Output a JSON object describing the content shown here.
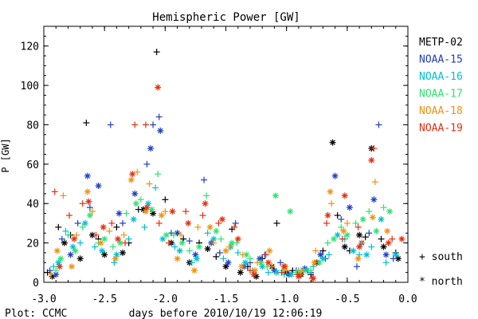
{
  "chart_data": {
    "type": "scatter",
    "title": "Hemispheric Power [GW]",
    "xlabel": "days before 2010/10/19 12:06:19",
    "ylabel": "P [GW]",
    "footer": "Plot: CCMC",
    "xlim": [
      -3.0,
      0.0
    ],
    "ylim": [
      0,
      130
    ],
    "xticks": [
      "-3.0",
      "-2.5",
      "-2.0",
      "-1.5",
      "-1.0",
      "-0.5",
      "0.0"
    ],
    "yticks": [
      "0",
      "20",
      "40",
      "60",
      "80",
      "100",
      "120"
    ],
    "legend_position": "right",
    "symbol_legend": [
      {
        "symbol": "+",
        "label": "south"
      },
      {
        "symbol": "*",
        "label": "north"
      }
    ],
    "series": [
      {
        "name": "METP-02",
        "color": "#000000",
        "south": [
          [
            -2.97,
            5
          ],
          [
            -2.88,
            28
          ],
          [
            -2.78,
            24
          ],
          [
            -2.65,
            81
          ],
          [
            -2.55,
            22
          ],
          [
            -2.4,
            28
          ],
          [
            -2.3,
            20
          ],
          [
            -2.22,
            37
          ],
          [
            -2.07,
            117
          ],
          [
            -2.0,
            42
          ],
          [
            -1.85,
            22
          ],
          [
            -1.72,
            20
          ],
          [
            -1.58,
            13
          ],
          [
            -1.45,
            27
          ],
          [
            -1.32,
            8
          ],
          [
            -1.2,
            12
          ],
          [
            -1.08,
            30
          ],
          [
            -0.95,
            6
          ],
          [
            -0.8,
            4
          ],
          [
            -0.7,
            16
          ],
          [
            -0.58,
            34
          ],
          [
            -0.48,
            16
          ],
          [
            -0.35,
            23
          ],
          [
            -0.22,
            22
          ],
          [
            -0.1,
            15
          ]
        ],
        "north": [
          [
            -2.93,
            3
          ],
          [
            -2.83,
            20
          ],
          [
            -2.7,
            12
          ],
          [
            -2.6,
            24
          ],
          [
            -2.5,
            14
          ],
          [
            -2.35,
            15
          ],
          [
            -2.18,
            37
          ],
          [
            -2.1,
            35
          ],
          [
            -1.95,
            20
          ],
          [
            -1.8,
            10
          ],
          [
            -1.65,
            17
          ],
          [
            -1.5,
            8
          ],
          [
            -1.38,
            5
          ],
          [
            -1.25,
            3
          ],
          [
            -1.12,
            8
          ],
          [
            -1.0,
            5
          ],
          [
            -0.88,
            4
          ],
          [
            -0.75,
            10
          ],
          [
            -0.62,
            71
          ],
          [
            -0.52,
            18
          ],
          [
            -0.4,
            24
          ],
          [
            -0.3,
            68
          ],
          [
            -0.2,
            18
          ],
          [
            -0.08,
            12
          ]
        ]
      },
      {
        "name": "NOAA-15",
        "color": "#1f3fbf",
        "south": [
          [
            -2.95,
            6
          ],
          [
            -2.85,
            22
          ],
          [
            -2.72,
            30
          ],
          [
            -2.62,
            38
          ],
          [
            -2.45,
            80
          ],
          [
            -2.35,
            30
          ],
          [
            -2.15,
            60
          ],
          [
            -2.1,
            80
          ],
          [
            -2.05,
            84
          ],
          [
            -1.95,
            25
          ],
          [
            -1.8,
            21
          ],
          [
            -1.68,
            52
          ],
          [
            -1.55,
            15
          ],
          [
            -1.42,
            30
          ],
          [
            -1.3,
            10
          ],
          [
            -1.18,
            14
          ],
          [
            -1.05,
            10
          ],
          [
            -0.92,
            6
          ],
          [
            -0.8,
            5
          ],
          [
            -0.68,
            12
          ],
          [
            -0.55,
            32
          ],
          [
            -0.42,
            8
          ],
          [
            -0.32,
            25
          ],
          [
            -0.24,
            80
          ],
          [
            -0.12,
            12
          ]
        ],
        "north": [
          [
            -2.9,
            4
          ],
          [
            -2.78,
            14
          ],
          [
            -2.64,
            54
          ],
          [
            -2.55,
            49
          ],
          [
            -2.38,
            35
          ],
          [
            -2.25,
            45
          ],
          [
            -2.12,
            68
          ],
          [
            -2.04,
            77
          ],
          [
            -1.9,
            25
          ],
          [
            -1.75,
            14
          ],
          [
            -1.62,
            20
          ],
          [
            -1.48,
            10
          ],
          [
            -1.35,
            8
          ],
          [
            -1.22,
            12
          ],
          [
            -1.1,
            6
          ],
          [
            -0.98,
            4
          ],
          [
            -0.85,
            7
          ],
          [
            -0.72,
            14
          ],
          [
            -0.6,
            54
          ],
          [
            -0.48,
            38
          ],
          [
            -0.38,
            20
          ],
          [
            -0.28,
            42
          ],
          [
            -0.18,
            14
          ]
        ]
      },
      {
        "name": "NOAA-16",
        "color": "#00c0d0",
        "south": [
          [
            -2.92,
            8
          ],
          [
            -2.82,
            26
          ],
          [
            -2.7,
            20
          ],
          [
            -2.58,
            18
          ],
          [
            -2.42,
            10
          ],
          [
            -2.3,
            22
          ],
          [
            -2.17,
            28
          ],
          [
            -2.08,
            48
          ],
          [
            -1.92,
            18
          ],
          [
            -1.78,
            10
          ],
          [
            -1.65,
            25
          ],
          [
            -1.52,
            12
          ],
          [
            -1.4,
            15
          ],
          [
            -1.28,
            6
          ],
          [
            -1.15,
            5
          ],
          [
            -1.02,
            4
          ],
          [
            -0.9,
            6
          ],
          [
            -0.78,
            8
          ],
          [
            -0.65,
            14
          ],
          [
            -0.52,
            22
          ],
          [
            -0.4,
            14
          ],
          [
            -0.3,
            18
          ],
          [
            -0.18,
            10
          ]
        ],
        "north": [
          [
            -2.88,
            10
          ],
          [
            -2.76,
            18
          ],
          [
            -2.66,
            30
          ],
          [
            -2.52,
            16
          ],
          [
            -2.4,
            14
          ],
          [
            -2.26,
            32
          ],
          [
            -2.14,
            40
          ],
          [
            -2.02,
            22
          ],
          [
            -1.88,
            16
          ],
          [
            -1.74,
            12
          ],
          [
            -1.6,
            22
          ],
          [
            -1.46,
            18
          ],
          [
            -1.34,
            10
          ],
          [
            -1.2,
            8
          ],
          [
            -1.08,
            5
          ],
          [
            -0.96,
            4
          ],
          [
            -0.83,
            6
          ],
          [
            -0.7,
            12
          ],
          [
            -0.58,
            24
          ],
          [
            -0.45,
            16
          ],
          [
            -0.34,
            14
          ],
          [
            -0.22,
            32
          ],
          [
            -0.1,
            14
          ]
        ]
      },
      {
        "name": "NOAA-17",
        "color": "#30e070",
        "south": [
          [
            -2.9,
            6
          ],
          [
            -2.8,
            24
          ],
          [
            -2.68,
            28
          ],
          [
            -2.55,
            20
          ],
          [
            -2.43,
            18
          ],
          [
            -2.32,
            35
          ],
          [
            -2.2,
            42
          ],
          [
            -2.06,
            55
          ],
          [
            -1.93,
            24
          ],
          [
            -1.8,
            16
          ],
          [
            -1.66,
            44
          ],
          [
            -1.54,
            22
          ],
          [
            -1.41,
            20
          ],
          [
            -1.3,
            12
          ],
          [
            -1.16,
            8
          ],
          [
            -1.03,
            6
          ],
          [
            -0.92,
            5
          ],
          [
            -0.8,
            6
          ],
          [
            -0.66,
            20
          ],
          [
            -0.55,
            28
          ],
          [
            -0.43,
            30
          ],
          [
            -0.32,
            36
          ],
          [
            -0.2,
            38
          ]
        ],
        "north": [
          [
            -2.86,
            12
          ],
          [
            -2.74,
            16
          ],
          [
            -2.62,
            34
          ],
          [
            -2.5,
            22
          ],
          [
            -2.37,
            20
          ],
          [
            -2.24,
            40
          ],
          [
            -2.11,
            37
          ],
          [
            -1.99,
            24
          ],
          [
            -1.86,
            20
          ],
          [
            -1.72,
            18
          ],
          [
            -1.58,
            26
          ],
          [
            -1.45,
            20
          ],
          [
            -1.33,
            14
          ],
          [
            -1.21,
            10
          ],
          [
            -1.09,
            44
          ],
          [
            -0.97,
            36
          ],
          [
            -0.86,
            6
          ],
          [
            -0.73,
            10
          ],
          [
            -0.61,
            22
          ],
          [
            -0.5,
            24
          ],
          [
            -0.37,
            32
          ],
          [
            -0.26,
            26
          ],
          [
            -0.15,
            36
          ]
        ]
      },
      {
        "name": "NOAA-18",
        "color": "#f09010",
        "south": [
          [
            -2.94,
            4
          ],
          [
            -2.84,
            44
          ],
          [
            -2.73,
            24
          ],
          [
            -2.6,
            36
          ],
          [
            -2.46,
            26
          ],
          [
            -2.34,
            24
          ],
          [
            -2.23,
            56
          ],
          [
            -2.13,
            50
          ],
          [
            -2.0,
            36
          ],
          [
            -1.87,
            24
          ],
          [
            -1.73,
            28
          ],
          [
            -1.6,
            20
          ],
          [
            -1.47,
            18
          ],
          [
            -1.36,
            14
          ],
          [
            -1.24,
            10
          ],
          [
            -1.12,
            8
          ],
          [
            -1.0,
            6
          ],
          [
            -0.88,
            6
          ],
          [
            -0.76,
            16
          ],
          [
            -0.63,
            40
          ],
          [
            -0.5,
            30
          ],
          [
            -0.38,
            20
          ],
          [
            -0.27,
            51
          ]
        ],
        "north": [
          [
            -2.89,
            16
          ],
          [
            -2.77,
            8
          ],
          [
            -2.64,
            46
          ],
          [
            -2.53,
            20
          ],
          [
            -2.41,
            12
          ],
          [
            -2.28,
            52
          ],
          [
            -2.16,
            36
          ],
          [
            -2.03,
            34
          ],
          [
            -1.9,
            12
          ],
          [
            -1.76,
            6
          ],
          [
            -1.63,
            28
          ],
          [
            -1.5,
            16
          ],
          [
            -1.37,
            8
          ],
          [
            -1.26,
            6
          ],
          [
            -1.14,
            16
          ],
          [
            -1.01,
            8
          ],
          [
            -0.89,
            4
          ],
          [
            -0.77,
            10
          ],
          [
            -0.64,
            46
          ],
          [
            -0.53,
            26
          ],
          [
            -0.41,
            12
          ],
          [
            -0.29,
            33
          ],
          [
            -0.17,
            26
          ]
        ]
      },
      {
        "name": "NOAA-19",
        "color": "#e03010",
        "south": [
          [
            -2.91,
            46
          ],
          [
            -2.79,
            34
          ],
          [
            -2.68,
            40
          ],
          [
            -2.57,
            24
          ],
          [
            -2.44,
            30
          ],
          [
            -2.33,
            20
          ],
          [
            -2.25,
            80
          ],
          [
            -2.16,
            80
          ],
          [
            -2.05,
            30
          ],
          [
            -1.97,
            20
          ],
          [
            -1.83,
            36
          ],
          [
            -1.69,
            34
          ],
          [
            -1.56,
            30
          ],
          [
            -1.43,
            28
          ],
          [
            -1.3,
            6
          ],
          [
            -1.17,
            14
          ],
          [
            -1.04,
            5
          ],
          [
            -0.91,
            4
          ],
          [
            -0.79,
            2
          ],
          [
            -0.67,
            30
          ],
          [
            -0.54,
            22
          ],
          [
            -0.41,
            28
          ],
          [
            -0.28,
            68
          ],
          [
            -0.13,
            22
          ]
        ],
        "north": [
          [
            -2.87,
            8
          ],
          [
            -2.75,
            22
          ],
          [
            -2.63,
            41
          ],
          [
            -2.51,
            28
          ],
          [
            -2.39,
            22
          ],
          [
            -2.27,
            55
          ],
          [
            -2.15,
            38
          ],
          [
            -2.06,
            99
          ],
          [
            -1.94,
            36
          ],
          [
            -1.81,
            30
          ],
          [
            -1.67,
            40
          ],
          [
            -1.53,
            32
          ],
          [
            -1.4,
            22
          ],
          [
            -1.27,
            4
          ],
          [
            -1.15,
            10
          ],
          [
            -1.02,
            8
          ],
          [
            -0.9,
            3
          ],
          [
            -0.78,
            2
          ],
          [
            -0.66,
            34
          ],
          [
            -0.52,
            44
          ],
          [
            -0.4,
            18
          ],
          [
            -0.3,
            62
          ],
          [
            -0.16,
            20
          ],
          [
            -0.05,
            22
          ]
        ]
      }
    ]
  }
}
